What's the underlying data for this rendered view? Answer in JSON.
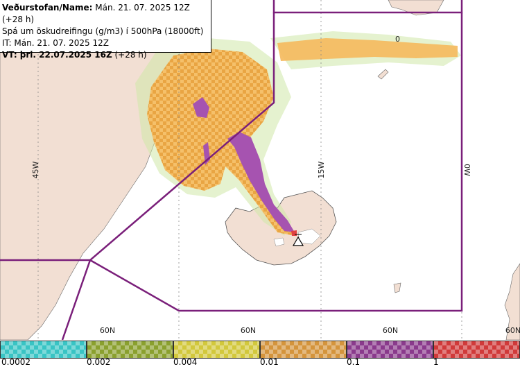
{
  "header": {
    "line1_label": "Veðurstofan/Name:",
    "line1_value": "Mán. 21. 07. 2025 12Z (+28 h)",
    "line2": "Spá um öskudreifingu (g/m3) í 500hPa (18000ft)",
    "line3": "IT: Mán. 21. 07. 2025 12Z",
    "line4_label": "VT: þri. 22.07.2025 16Z",
    "line4_value": "(+28 h)"
  },
  "map": {
    "meridian_labels": [
      "45W",
      "15W",
      "0W"
    ],
    "parallel_labels": [
      "60N",
      "60N",
      "60N",
      "60N"
    ],
    "annotation": "0",
    "volcano_marker": "volcano-triangle"
  },
  "legend": {
    "ticks": [
      "0.0002",
      "0.002",
      "0.004",
      "0.01",
      "0.1",
      "1"
    ],
    "colors": [
      "#39c4c4",
      "#8aa02e",
      "#d2c83c",
      "#d4943c",
      "#8a3a8c",
      "#d03a3a"
    ]
  },
  "colors": {
    "land": "#f2dfd3",
    "ash_orange": "#f6b24e",
    "ash_purple": "#a653b0",
    "fir_boundary": "#7a1f7a"
  }
}
